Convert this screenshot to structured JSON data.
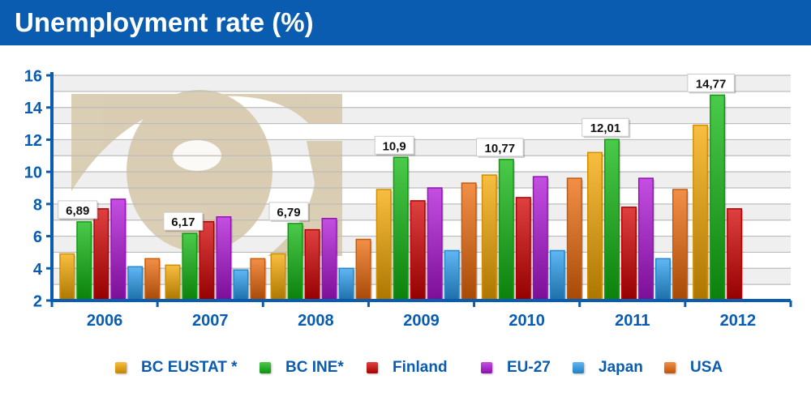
{
  "header": {
    "title": "Unemployment rate (%)"
  },
  "chart_data": {
    "type": "bar",
    "title": "Unemployment rate (%)",
    "xlabel": "",
    "ylabel": "",
    "ylim": [
      2,
      16
    ],
    "yticks": [
      2,
      4,
      6,
      8,
      10,
      12,
      14,
      16
    ],
    "ytick_labels": [
      "2",
      "4",
      "6",
      "8",
      "10",
      "12",
      "14",
      "16"
    ],
    "grid": true,
    "legend_position": "bottom",
    "categories": [
      "2006",
      "2007",
      "2008",
      "2009",
      "2010",
      "2011",
      "2012"
    ],
    "series": [
      {
        "name": "BC EUSTAT *",
        "color": "#f5a800",
        "values": [
          4.9,
          4.2,
          4.9,
          8.9,
          9.8,
          11.2,
          12.9
        ]
      },
      {
        "name": "BC INE*",
        "color": "#0fb80f",
        "values": [
          6.89,
          6.17,
          6.79,
          10.9,
          10.77,
          12.01,
          14.77
        ]
      },
      {
        "name": "Finland",
        "color": "#d40000",
        "values": [
          7.7,
          6.9,
          6.4,
          8.2,
          8.4,
          7.8,
          7.7
        ]
      },
      {
        "name": "EU-27",
        "color": "#b014d8",
        "values": [
          8.3,
          7.2,
          7.1,
          9.0,
          9.7,
          9.6,
          null
        ]
      },
      {
        "name": "Japan",
        "color": "#2a9ff0",
        "values": [
          4.1,
          3.9,
          4.0,
          5.1,
          5.1,
          4.6,
          null
        ]
      },
      {
        "name": "USA",
        "color": "#ee6a0a",
        "values": [
          4.6,
          4.6,
          5.8,
          9.3,
          9.6,
          8.9,
          null
        ]
      }
    ],
    "annotations": [
      {
        "series": "BC INE*",
        "category": "2006",
        "text": "6,89"
      },
      {
        "series": "BC INE*",
        "category": "2007",
        "text": "6,17"
      },
      {
        "series": "BC INE*",
        "category": "2008",
        "text": "6,79"
      },
      {
        "series": "BC INE*",
        "category": "2009",
        "text": "10,9"
      },
      {
        "series": "BC INE*",
        "category": "2010",
        "text": "10,77"
      },
      {
        "series": "BC INE*",
        "category": "2011",
        "text": "12,01"
      },
      {
        "series": "BC INE*",
        "category": "2012",
        "text": "14,77"
      }
    ]
  },
  "colors": {
    "title_bar": "#0a5cb0",
    "axis": "#0a5cb0",
    "label_text": "#0a5cb0",
    "watermark": "#d8cbb0"
  }
}
